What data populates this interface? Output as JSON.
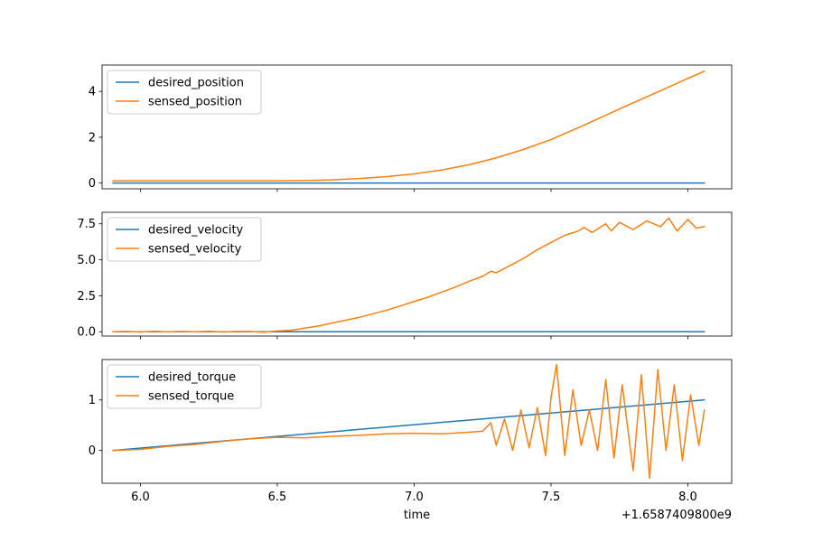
{
  "chart_data": [
    {
      "type": "line",
      "legend_position": "top-left",
      "xlim": [
        5.86,
        8.16
      ],
      "ylim": [
        -0.25,
        5.15
      ],
      "yticks": [
        0,
        2,
        4
      ],
      "ytick_labels": [
        "0",
        "2",
        "4"
      ],
      "xticks": [
        6.0,
        6.5,
        7.0,
        7.5,
        8.0
      ],
      "show_xtick_labels": false,
      "series": [
        {
          "name": "desired_position",
          "color": "#1f77b4",
          "x": [
            5.9,
            8.06
          ],
          "y": [
            0.0,
            0.0
          ]
        },
        {
          "name": "sensed_position",
          "color": "#ff7f0e",
          "x": [
            5.9,
            6.0,
            6.2,
            6.4,
            6.5,
            6.6,
            6.7,
            6.8,
            6.9,
            7.0,
            7.1,
            7.2,
            7.3,
            7.4,
            7.5,
            7.6,
            7.7,
            7.8,
            7.9,
            8.0,
            8.06
          ],
          "y": [
            0.1,
            0.1,
            0.1,
            0.1,
            0.1,
            0.11,
            0.14,
            0.2,
            0.28,
            0.4,
            0.57,
            0.8,
            1.1,
            1.47,
            1.9,
            2.42,
            2.96,
            3.5,
            4.03,
            4.57,
            4.88
          ]
        }
      ]
    },
    {
      "type": "line",
      "legend_position": "top-left",
      "xlim": [
        5.86,
        8.16
      ],
      "ylim": [
        -0.3,
        8.3
      ],
      "yticks": [
        0.0,
        2.5,
        5.0,
        7.5
      ],
      "ytick_labels": [
        "0.0",
        "2.5",
        "5.0",
        "7.5"
      ],
      "xticks": [
        6.0,
        6.5,
        7.0,
        7.5,
        8.0
      ],
      "show_xtick_labels": false,
      "series": [
        {
          "name": "desired_velocity",
          "color": "#1f77b4",
          "x": [
            5.9,
            8.06
          ],
          "y": [
            0.0,
            0.0
          ]
        },
        {
          "name": "sensed_velocity",
          "color": "#ff7f0e",
          "x": [
            5.9,
            5.95,
            6.0,
            6.05,
            6.1,
            6.15,
            6.2,
            6.25,
            6.3,
            6.35,
            6.4,
            6.45,
            6.5,
            6.55,
            6.6,
            6.65,
            6.7,
            6.75,
            6.8,
            6.85,
            6.9,
            6.95,
            7.0,
            7.05,
            7.1,
            7.15,
            7.2,
            7.25,
            7.28,
            7.3,
            7.35,
            7.4,
            7.45,
            7.5,
            7.55,
            7.6,
            7.62,
            7.65,
            7.7,
            7.72,
            7.75,
            7.8,
            7.85,
            7.9,
            7.93,
            7.96,
            8.0,
            8.03,
            8.06
          ],
          "y": [
            0.0,
            0.02,
            -0.02,
            0.03,
            -0.01,
            0.02,
            0.0,
            0.03,
            -0.02,
            0.02,
            0.01,
            -0.03,
            0.05,
            0.1,
            0.25,
            0.4,
            0.6,
            0.8,
            1.0,
            1.25,
            1.5,
            1.8,
            2.1,
            2.4,
            2.75,
            3.1,
            3.5,
            3.85,
            4.2,
            4.1,
            4.6,
            5.1,
            5.7,
            6.2,
            6.7,
            7.0,
            7.25,
            6.9,
            7.5,
            7.0,
            7.6,
            7.1,
            7.7,
            7.3,
            7.9,
            7.0,
            7.8,
            7.2,
            7.3
          ]
        }
      ]
    },
    {
      "type": "line",
      "legend_position": "top-left",
      "xlim": [
        5.86,
        8.16
      ],
      "ylim": [
        -0.65,
        1.8
      ],
      "yticks": [
        0,
        1
      ],
      "ytick_labels": [
        "0",
        "1"
      ],
      "xticks": [
        6.0,
        6.5,
        7.0,
        7.5,
        8.0
      ],
      "show_xtick_labels": true,
      "xtick_labels": [
        "6.0",
        "6.5",
        "7.0",
        "7.5",
        "8.0"
      ],
      "xlabel": "time",
      "offset_text": "+1.6587409800e9",
      "series": [
        {
          "name": "desired_torque",
          "color": "#1f77b4",
          "x": [
            5.9,
            8.06
          ],
          "y": [
            0.0,
            1.0
          ]
        },
        {
          "name": "sensed_torque",
          "color": "#ff7f0e",
          "x": [
            5.9,
            6.0,
            6.1,
            6.2,
            6.3,
            6.4,
            6.5,
            6.6,
            6.7,
            6.8,
            6.9,
            7.0,
            7.1,
            7.2,
            7.25,
            7.28,
            7.3,
            7.33,
            7.36,
            7.39,
            7.42,
            7.45,
            7.48,
            7.5,
            7.52,
            7.55,
            7.58,
            7.61,
            7.64,
            7.67,
            7.7,
            7.73,
            7.76,
            7.8,
            7.83,
            7.86,
            7.89,
            7.92,
            7.95,
            7.98,
            8.01,
            8.04,
            8.06
          ],
          "y": [
            0.0,
            0.02,
            0.08,
            0.12,
            0.18,
            0.23,
            0.26,
            0.25,
            0.28,
            0.3,
            0.33,
            0.34,
            0.33,
            0.36,
            0.38,
            0.55,
            0.1,
            0.62,
            0.0,
            0.8,
            0.05,
            0.85,
            -0.1,
            1.05,
            1.7,
            -0.1,
            1.2,
            0.1,
            0.8,
            0.0,
            1.4,
            -0.15,
            1.3,
            -0.4,
            1.5,
            -0.55,
            1.6,
            0.0,
            1.3,
            -0.2,
            1.1,
            0.1,
            0.8
          ]
        }
      ]
    }
  ]
}
